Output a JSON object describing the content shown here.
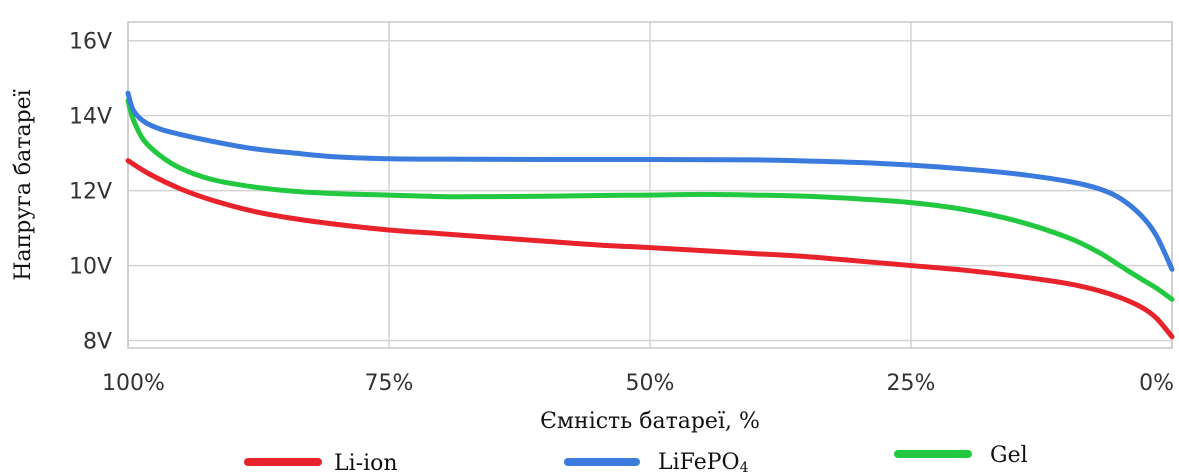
{
  "chart_data": {
    "type": "line",
    "title": "",
    "xlabel": "Ємність батареї, %",
    "ylabel": "Напруга батареї",
    "x_reversed": true,
    "xlim": [
      100,
      0
    ],
    "ylim": [
      7.8,
      16.5
    ],
    "x_ticks": [
      {
        "value": 100,
        "label": "100%"
      },
      {
        "value": 75,
        "label": "75%"
      },
      {
        "value": 50,
        "label": "50%"
      },
      {
        "value": 25,
        "label": "25%"
      },
      {
        "value": 0,
        "label": "0%"
      }
    ],
    "y_ticks": [
      {
        "value": 16,
        "label": "16V"
      },
      {
        "value": 14,
        "label": "14V"
      },
      {
        "value": 12,
        "label": "12V"
      },
      {
        "value": 10,
        "label": "10V"
      },
      {
        "value": 8,
        "label": "8V"
      }
    ],
    "grid": true,
    "legend_position": "bottom",
    "series": [
      {
        "name": "Li-ion",
        "color": "#e8232b",
        "points": [
          [
            100,
            12.8
          ],
          [
            98,
            12.45
          ],
          [
            95,
            12.05
          ],
          [
            92,
            11.75
          ],
          [
            88,
            11.45
          ],
          [
            84,
            11.25
          ],
          [
            80,
            11.1
          ],
          [
            75,
            10.95
          ],
          [
            70,
            10.85
          ],
          [
            65,
            10.75
          ],
          [
            60,
            10.65
          ],
          [
            55,
            10.55
          ],
          [
            50,
            10.48
          ],
          [
            45,
            10.4
          ],
          [
            40,
            10.32
          ],
          [
            35,
            10.24
          ],
          [
            30,
            10.12
          ],
          [
            25,
            10.0
          ],
          [
            20,
            9.88
          ],
          [
            15,
            9.72
          ],
          [
            10,
            9.52
          ],
          [
            7,
            9.33
          ],
          [
            5,
            9.15
          ],
          [
            3,
            8.9
          ],
          [
            1.5,
            8.6
          ],
          [
            0,
            8.1
          ]
        ]
      },
      {
        "name": "LiFePO4",
        "color": "#3a7bdd",
        "points": [
          [
            100,
            14.6
          ],
          [
            99.5,
            14.15
          ],
          [
            98.5,
            13.85
          ],
          [
            97,
            13.65
          ],
          [
            95,
            13.5
          ],
          [
            92,
            13.32
          ],
          [
            88,
            13.12
          ],
          [
            84,
            13.0
          ],
          [
            80,
            12.9
          ],
          [
            75,
            12.85
          ],
          [
            70,
            12.84
          ],
          [
            60,
            12.83
          ],
          [
            50,
            12.83
          ],
          [
            40,
            12.82
          ],
          [
            35,
            12.79
          ],
          [
            30,
            12.75
          ],
          [
            25,
            12.68
          ],
          [
            20,
            12.58
          ],
          [
            15,
            12.45
          ],
          [
            10,
            12.25
          ],
          [
            7,
            12.05
          ],
          [
            5,
            11.8
          ],
          [
            3,
            11.35
          ],
          [
            1.5,
            10.8
          ],
          [
            0,
            9.9
          ]
        ]
      },
      {
        "name": "Gel",
        "color": "#22c940",
        "points": [
          [
            100,
            14.4
          ],
          [
            99.5,
            13.9
          ],
          [
            98.5,
            13.35
          ],
          [
            97,
            12.95
          ],
          [
            95,
            12.6
          ],
          [
            92,
            12.3
          ],
          [
            88,
            12.1
          ],
          [
            84,
            11.98
          ],
          [
            80,
            11.92
          ],
          [
            75,
            11.88
          ],
          [
            70,
            11.84
          ],
          [
            65,
            11.84
          ],
          [
            60,
            11.85
          ],
          [
            55,
            11.87
          ],
          [
            50,
            11.88
          ],
          [
            45,
            11.9
          ],
          [
            40,
            11.88
          ],
          [
            35,
            11.85
          ],
          [
            30,
            11.78
          ],
          [
            25,
            11.68
          ],
          [
            20,
            11.5
          ],
          [
            15,
            11.2
          ],
          [
            10,
            10.75
          ],
          [
            7,
            10.35
          ],
          [
            5,
            10.0
          ],
          [
            3,
            9.65
          ],
          [
            1.5,
            9.4
          ],
          [
            0,
            9.1
          ]
        ]
      }
    ]
  }
}
